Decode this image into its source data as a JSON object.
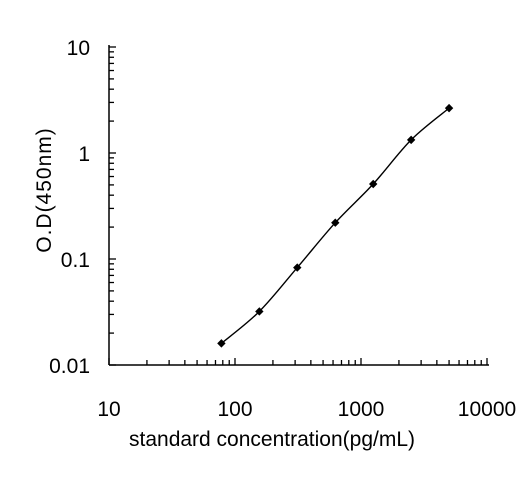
{
  "chart_data": {
    "type": "line",
    "title": "",
    "xlabel": "standard concentration(pg/mL)",
    "ylabel": "O.D(450nm)",
    "x_scale": "log",
    "y_scale": "log",
    "xlim": [
      10,
      10000
    ],
    "ylim": [
      0.01,
      10
    ],
    "x_ticks": [
      "10",
      "100",
      "1000",
      "10000"
    ],
    "y_ticks": [
      "0.01",
      "0.1",
      "1",
      "10"
    ],
    "grid": false,
    "series": [
      {
        "x": [
          78,
          156,
          312,
          625,
          1250,
          2500,
          5000
        ],
        "y": [
          0.016,
          0.032,
          0.083,
          0.22,
          0.51,
          1.33,
          2.65
        ],
        "color": "#000000",
        "marker": "diamond"
      }
    ]
  }
}
